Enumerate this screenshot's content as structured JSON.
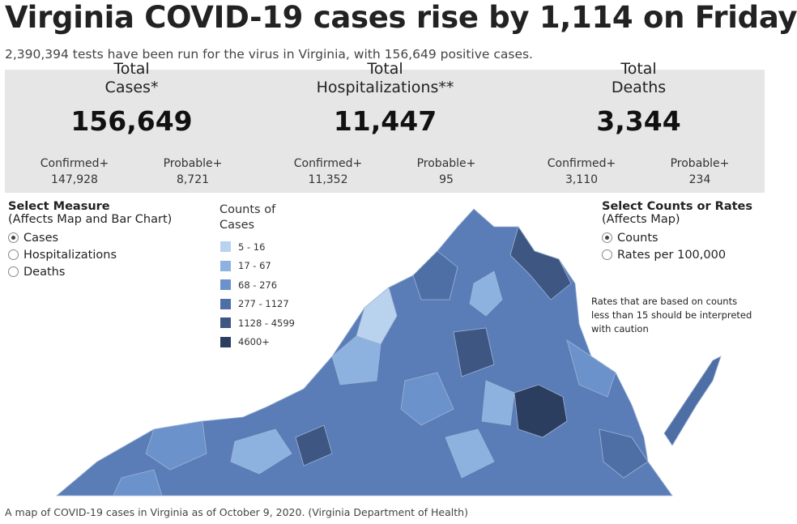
{
  "header": {
    "title": "Virginia COVID-19 cases rise by 1,114 on Friday",
    "subtitle": "2,390,394 tests have been run for the virus in Virginia, with 156,649 positive cases."
  },
  "stats": [
    {
      "label_top": "Total",
      "label": "Cases*",
      "total": "156,649",
      "confirmed_label": "Confirmed+",
      "confirmed": "147,928",
      "probable_label": "Probable+",
      "probable": "8,721"
    },
    {
      "label_top": "Total",
      "label": "Hospitalizations**",
      "total": "11,447",
      "confirmed_label": "Confirmed+",
      "confirmed": "11,352",
      "probable_label": "Probable+",
      "probable": "95"
    },
    {
      "label_top": "Total",
      "label": "Deaths",
      "total": "3,344",
      "confirmed_label": "Confirmed+",
      "confirmed": "3,110",
      "probable_label": "Probable+",
      "probable": "234"
    }
  ],
  "measure": {
    "title": "Select Measure",
    "subtitle": "(Affects Map and Bar Chart)",
    "options": [
      "Cases",
      "Hospitalizations",
      "Deaths"
    ]
  },
  "legend": {
    "title": "Counts of Cases",
    "items": [
      {
        "label": "5 - 16",
        "color": "#b9d3ef"
      },
      {
        "label": "17 - 67",
        "color": "#8eb2e0"
      },
      {
        "label": "68 - 276",
        "color": "#6b92cb"
      },
      {
        "label": "277 - 1127",
        "color": "#4e6fa6"
      },
      {
        "label": "1128 - 4599",
        "color": "#3d5682"
      },
      {
        "label": "4600+",
        "color": "#2c3e5f"
      }
    ]
  },
  "counts_rates": {
    "title": "Select Counts or Rates",
    "subtitle": "(Affects Map)",
    "options": [
      "Counts",
      "Rates per 100,000"
    ],
    "note": "Rates that are based on counts less than 15 should be interpreted with caution"
  },
  "caption": "A map of COVID-19 cases in Virginia as of October 9, 2020.  (Virginia Department of Health)"
}
